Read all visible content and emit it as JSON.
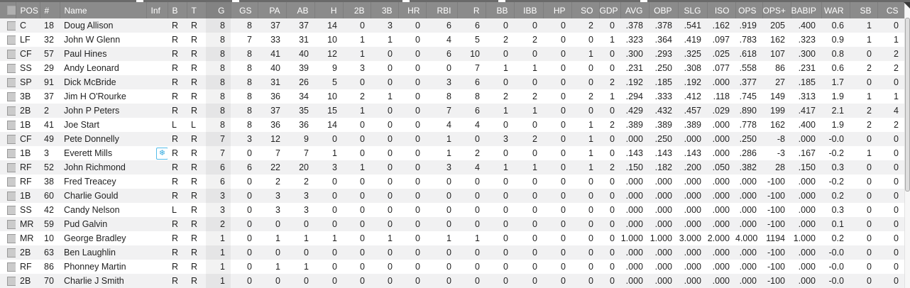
{
  "table": {
    "icons": {
      "inf": "❄"
    },
    "colors": {
      "header_bg": "#8b8b8b",
      "header_sorted_bg": "#838383",
      "row_stripe": "#f1f1f2",
      "inf_icon_accent": "#35aadf"
    },
    "sorted_column": "g",
    "columns": [
      {
        "key": "select",
        "label": "",
        "align": "center",
        "type": "checkbox"
      },
      {
        "key": "pos",
        "label": "POS",
        "align": "left"
      },
      {
        "key": "num",
        "label": "#",
        "align": "left"
      },
      {
        "key": "name",
        "label": "Name",
        "align": "left"
      },
      {
        "key": "inf",
        "label": "Inf",
        "align": "left"
      },
      {
        "key": "b",
        "label": "B",
        "align": "left"
      },
      {
        "key": "t",
        "label": "T",
        "align": "left"
      },
      {
        "key": "g",
        "label": "G",
        "align": "right",
        "sorted": true
      },
      {
        "key": "gs",
        "label": "GS",
        "align": "right"
      },
      {
        "key": "pa",
        "label": "PA",
        "align": "right"
      },
      {
        "key": "ab",
        "label": "AB",
        "align": "right"
      },
      {
        "key": "h",
        "label": "H",
        "align": "right"
      },
      {
        "key": "2b",
        "label": "2B",
        "align": "right"
      },
      {
        "key": "3b",
        "label": "3B",
        "align": "right"
      },
      {
        "key": "hr",
        "label": "HR",
        "align": "right"
      },
      {
        "key": "rbi",
        "label": "RBI",
        "align": "right"
      },
      {
        "key": "r",
        "label": "R",
        "align": "right"
      },
      {
        "key": "bb",
        "label": "BB",
        "align": "right"
      },
      {
        "key": "ibb",
        "label": "IBB",
        "align": "right"
      },
      {
        "key": "hp",
        "label": "HP",
        "align": "right"
      },
      {
        "key": "so",
        "label": "SO",
        "align": "right"
      },
      {
        "key": "gdp",
        "label": "GDP",
        "align": "right"
      },
      {
        "key": "avg",
        "label": "AVG",
        "align": "right"
      },
      {
        "key": "obp",
        "label": "OBP",
        "align": "right"
      },
      {
        "key": "slg",
        "label": "SLG",
        "align": "right"
      },
      {
        "key": "iso",
        "label": "ISO",
        "align": "right"
      },
      {
        "key": "ops",
        "label": "OPS",
        "align": "right"
      },
      {
        "key": "ops_plus",
        "label": "OPS+",
        "align": "right"
      },
      {
        "key": "babip",
        "label": "BABIP",
        "align": "right"
      },
      {
        "key": "war",
        "label": "WAR",
        "align": "right"
      },
      {
        "key": "sb",
        "label": "SB",
        "align": "right"
      },
      {
        "key": "cs",
        "label": "CS",
        "align": "right"
      }
    ],
    "rows": [
      {
        "pos": "C",
        "num": "18",
        "name": "Doug Allison",
        "b": "R",
        "t": "R",
        "g": 8,
        "gs": 8,
        "pa": 37,
        "ab": 37,
        "h": 14,
        "2b": 0,
        "3b": 3,
        "hr": 0,
        "rbi": 6,
        "r": 6,
        "bb": 0,
        "ibb": 0,
        "hp": 0,
        "so": 2,
        "gdp": 0,
        "avg": ".378",
        "obp": ".378",
        "slg": ".541",
        "iso": ".162",
        "ops": ".919",
        "ops_plus": 205,
        "babip": ".400",
        "war": "0.6",
        "sb": 1,
        "cs": 0
      },
      {
        "pos": "LF",
        "num": "32",
        "name": "John W Glenn",
        "b": "R",
        "t": "R",
        "g": 8,
        "gs": 7,
        "pa": 33,
        "ab": 31,
        "h": 10,
        "2b": 1,
        "3b": 1,
        "hr": 0,
        "rbi": 4,
        "r": 5,
        "bb": 2,
        "ibb": 2,
        "hp": 0,
        "so": 0,
        "gdp": 1,
        "avg": ".323",
        "obp": ".364",
        "slg": ".419",
        "iso": ".097",
        "ops": ".783",
        "ops_plus": 162,
        "babip": ".323",
        "war": "0.9",
        "sb": 1,
        "cs": 1
      },
      {
        "pos": "CF",
        "num": "57",
        "name": "Paul Hines",
        "b": "R",
        "t": "R",
        "g": 8,
        "gs": 8,
        "pa": 41,
        "ab": 40,
        "h": 12,
        "2b": 1,
        "3b": 0,
        "hr": 0,
        "rbi": 6,
        "r": 10,
        "bb": 0,
        "ibb": 0,
        "hp": 0,
        "so": 1,
        "gdp": 0,
        "avg": ".300",
        "obp": ".293",
        "slg": ".325",
        "iso": ".025",
        "ops": ".618",
        "ops_plus": 107,
        "babip": ".300",
        "war": "0.8",
        "sb": 0,
        "cs": 2
      },
      {
        "pos": "SS",
        "num": "29",
        "name": "Andy Leonard",
        "b": "R",
        "t": "R",
        "g": 8,
        "gs": 8,
        "pa": 40,
        "ab": 39,
        "h": 9,
        "2b": 3,
        "3b": 0,
        "hr": 0,
        "rbi": 0,
        "r": 7,
        "bb": 1,
        "ibb": 1,
        "hp": 0,
        "so": 0,
        "gdp": 0,
        "avg": ".231",
        "obp": ".250",
        "slg": ".308",
        "iso": ".077",
        "ops": ".558",
        "ops_plus": 86,
        "babip": ".231",
        "war": "0.6",
        "sb": 2,
        "cs": 2
      },
      {
        "pos": "SP",
        "num": "91",
        "name": "Dick McBride",
        "b": "R",
        "t": "R",
        "g": 8,
        "gs": 8,
        "pa": 31,
        "ab": 26,
        "h": 5,
        "2b": 0,
        "3b": 0,
        "hr": 0,
        "rbi": 3,
        "r": 6,
        "bb": 0,
        "ibb": 0,
        "hp": 0,
        "so": 0,
        "gdp": 2,
        "avg": ".192",
        "obp": ".185",
        "slg": ".192",
        "iso": ".000",
        "ops": ".377",
        "ops_plus": 27,
        "babip": ".185",
        "war": "1.7",
        "sb": 0,
        "cs": 0
      },
      {
        "pos": "3B",
        "num": "37",
        "name": "Jim H O'Rourke",
        "b": "R",
        "t": "R",
        "g": 8,
        "gs": 8,
        "pa": 36,
        "ab": 34,
        "h": 10,
        "2b": 2,
        "3b": 1,
        "hr": 0,
        "rbi": 8,
        "r": 8,
        "bb": 2,
        "ibb": 2,
        "hp": 0,
        "so": 2,
        "gdp": 1,
        "avg": ".294",
        "obp": ".333",
        "slg": ".412",
        "iso": ".118",
        "ops": ".745",
        "ops_plus": 149,
        "babip": ".313",
        "war": "1.9",
        "sb": 1,
        "cs": 1
      },
      {
        "pos": "2B",
        "num": "2",
        "name": "John P Peters",
        "b": "R",
        "t": "R",
        "g": 8,
        "gs": 8,
        "pa": 37,
        "ab": 35,
        "h": 15,
        "2b": 1,
        "3b": 0,
        "hr": 0,
        "rbi": 7,
        "r": 6,
        "bb": 1,
        "ibb": 1,
        "hp": 0,
        "so": 0,
        "gdp": 0,
        "avg": ".429",
        "obp": ".432",
        "slg": ".457",
        "iso": ".029",
        "ops": ".890",
        "ops_plus": 199,
        "babip": ".417",
        "war": "2.1",
        "sb": 2,
        "cs": 4
      },
      {
        "pos": "1B",
        "num": "41",
        "name": "Joe Start",
        "b": "L",
        "t": "L",
        "g": 8,
        "gs": 8,
        "pa": 36,
        "ab": 36,
        "h": 14,
        "2b": 0,
        "3b": 0,
        "hr": 0,
        "rbi": 4,
        "r": 4,
        "bb": 0,
        "ibb": 0,
        "hp": 0,
        "so": 1,
        "gdp": 2,
        "avg": ".389",
        "obp": ".389",
        "slg": ".389",
        "iso": ".000",
        "ops": ".778",
        "ops_plus": 162,
        "babip": ".400",
        "war": "1.9",
        "sb": 2,
        "cs": 2
      },
      {
        "pos": "CF",
        "num": "49",
        "name": "Pete Donnelly",
        "b": "R",
        "t": "R",
        "g": 7,
        "gs": 3,
        "pa": 12,
        "ab": 9,
        "h": 0,
        "2b": 0,
        "3b": 0,
        "hr": 0,
        "rbi": 1,
        "r": 0,
        "bb": 3,
        "ibb": 2,
        "hp": 0,
        "so": 1,
        "gdp": 0,
        "avg": ".000",
        "obp": ".250",
        "slg": ".000",
        "iso": ".000",
        "ops": ".250",
        "ops_plus": -8,
        "babip": ".000",
        "war": "-0.0",
        "sb": 0,
        "cs": 0
      },
      {
        "pos": "1B",
        "num": "3",
        "name": "Everett Mills",
        "inf": true,
        "b": "R",
        "t": "R",
        "g": 7,
        "gs": 0,
        "pa": 7,
        "ab": 7,
        "h": 1,
        "2b": 0,
        "3b": 0,
        "hr": 0,
        "rbi": 1,
        "r": 2,
        "bb": 0,
        "ibb": 0,
        "hp": 0,
        "so": 1,
        "gdp": 0,
        "avg": ".143",
        "obp": ".143",
        "slg": ".143",
        "iso": ".000",
        "ops": ".286",
        "ops_plus": -3,
        "babip": ".167",
        "war": "-0.2",
        "sb": 1,
        "cs": 0
      },
      {
        "pos": "RF",
        "num": "52",
        "name": "John Richmond",
        "b": "R",
        "t": "R",
        "g": 6,
        "gs": 6,
        "pa": 22,
        "ab": 20,
        "h": 3,
        "2b": 1,
        "3b": 0,
        "hr": 0,
        "rbi": 3,
        "r": 4,
        "bb": 1,
        "ibb": 1,
        "hp": 0,
        "so": 1,
        "gdp": 2,
        "avg": ".150",
        "obp": ".182",
        "slg": ".200",
        "iso": ".050",
        "ops": ".382",
        "ops_plus": 28,
        "babip": ".150",
        "war": "0.3",
        "sb": 0,
        "cs": 0
      },
      {
        "pos": "RF",
        "num": "38",
        "name": "Fred Treacey",
        "b": "R",
        "t": "R",
        "g": 6,
        "gs": 0,
        "pa": 2,
        "ab": 2,
        "h": 0,
        "2b": 0,
        "3b": 0,
        "hr": 0,
        "rbi": 0,
        "r": 0,
        "bb": 0,
        "ibb": 0,
        "hp": 0,
        "so": 0,
        "gdp": 0,
        "avg": ".000",
        "obp": ".000",
        "slg": ".000",
        "iso": ".000",
        "ops": ".000",
        "ops_plus": -100,
        "babip": ".000",
        "war": "-0.2",
        "sb": 0,
        "cs": 0
      },
      {
        "pos": "1B",
        "num": "60",
        "name": "Charlie Gould",
        "b": "R",
        "t": "R",
        "g": 3,
        "gs": 0,
        "pa": 3,
        "ab": 3,
        "h": 0,
        "2b": 0,
        "3b": 0,
        "hr": 0,
        "rbi": 0,
        "r": 0,
        "bb": 0,
        "ibb": 0,
        "hp": 0,
        "so": 0,
        "gdp": 0,
        "avg": ".000",
        "obp": ".000",
        "slg": ".000",
        "iso": ".000",
        "ops": ".000",
        "ops_plus": -100,
        "babip": ".000",
        "war": "0.2",
        "sb": 0,
        "cs": 0
      },
      {
        "pos": "SS",
        "num": "42",
        "name": "Candy Nelson",
        "b": "L",
        "t": "R",
        "g": 3,
        "gs": 0,
        "pa": 3,
        "ab": 3,
        "h": 0,
        "2b": 0,
        "3b": 0,
        "hr": 0,
        "rbi": 0,
        "r": 0,
        "bb": 0,
        "ibb": 0,
        "hp": 0,
        "so": 0,
        "gdp": 0,
        "avg": ".000",
        "obp": ".000",
        "slg": ".000",
        "iso": ".000",
        "ops": ".000",
        "ops_plus": -100,
        "babip": ".000",
        "war": "0.3",
        "sb": 0,
        "cs": 0
      },
      {
        "pos": "MR",
        "num": "59",
        "name": "Pud Galvin",
        "b": "R",
        "t": "R",
        "g": 2,
        "gs": 0,
        "pa": 0,
        "ab": 0,
        "h": 0,
        "2b": 0,
        "3b": 0,
        "hr": 0,
        "rbi": 0,
        "r": 0,
        "bb": 0,
        "ibb": 0,
        "hp": 0,
        "so": 0,
        "gdp": 0,
        "avg": ".000",
        "obp": ".000",
        "slg": ".000",
        "iso": ".000",
        "ops": ".000",
        "ops_plus": -100,
        "babip": ".000",
        "war": "0.1",
        "sb": 0,
        "cs": 0
      },
      {
        "pos": "MR",
        "num": "10",
        "name": "George Bradley",
        "b": "R",
        "t": "R",
        "g": 1,
        "gs": 0,
        "pa": 1,
        "ab": 1,
        "h": 1,
        "2b": 0,
        "3b": 1,
        "hr": 0,
        "rbi": 1,
        "r": 1,
        "bb": 0,
        "ibb": 0,
        "hp": 0,
        "so": 0,
        "gdp": 0,
        "avg": "1.000",
        "obp": "1.000",
        "slg": "3.000",
        "iso": "2.000",
        "ops": "4.000",
        "ops_plus": 1194,
        "babip": "1.000",
        "war": "0.2",
        "sb": 0,
        "cs": 0
      },
      {
        "pos": "2B",
        "num": "63",
        "name": "Ben Laughlin",
        "b": "R",
        "t": "R",
        "g": 1,
        "gs": 0,
        "pa": 0,
        "ab": 0,
        "h": 0,
        "2b": 0,
        "3b": 0,
        "hr": 0,
        "rbi": 0,
        "r": 0,
        "bb": 0,
        "ibb": 0,
        "hp": 0,
        "so": 0,
        "gdp": 0,
        "avg": ".000",
        "obp": ".000",
        "slg": ".000",
        "iso": ".000",
        "ops": ".000",
        "ops_plus": -100,
        "babip": ".000",
        "war": "-0.0",
        "sb": 0,
        "cs": 0
      },
      {
        "pos": "RF",
        "num": "86",
        "name": "Phonney Martin",
        "b": "R",
        "t": "R",
        "g": 1,
        "gs": 0,
        "pa": 1,
        "ab": 1,
        "h": 0,
        "2b": 0,
        "3b": 0,
        "hr": 0,
        "rbi": 0,
        "r": 0,
        "bb": 0,
        "ibb": 0,
        "hp": 0,
        "so": 0,
        "gdp": 0,
        "avg": ".000",
        "obp": ".000",
        "slg": ".000",
        "iso": ".000",
        "ops": ".000",
        "ops_plus": -100,
        "babip": ".000",
        "war": "-0.0",
        "sb": 0,
        "cs": 0
      },
      {
        "pos": "2B",
        "num": "70",
        "name": "Charlie J Smith",
        "b": "R",
        "t": "R",
        "g": 1,
        "gs": 0,
        "pa": 0,
        "ab": 0,
        "h": 0,
        "2b": 0,
        "3b": 0,
        "hr": 0,
        "rbi": 0,
        "r": 0,
        "bb": 0,
        "ibb": 0,
        "hp": 0,
        "so": 0,
        "gdp": 0,
        "avg": ".000",
        "obp": ".000",
        "slg": ".000",
        "iso": ".000",
        "ops": ".000",
        "ops_plus": -100,
        "babip": ".000",
        "war": "-0.0",
        "sb": 0,
        "cs": 0
      }
    ]
  }
}
